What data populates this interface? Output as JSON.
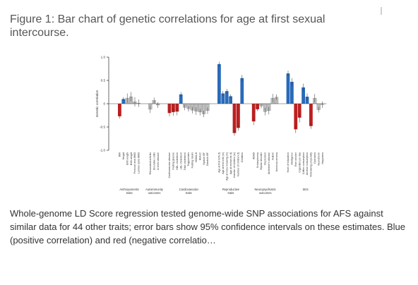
{
  "figure_title": "Figure 1: Bar chart of genetic correlations for age at first sexual intercourse.",
  "caption": "Whole-genome LD Score regression tested genome-wide SNP associations for AFS against similar data for 44 other traits; error bars show 95% confidence intervals on these estimates. Blue (positive correlation) and red (negative correlatio…",
  "colors": {
    "positive": "#2a6ab8",
    "negative": "#bb2020",
    "nonsignificant": "#bdbdbd"
  },
  "chart_data": {
    "type": "bar",
    "ylabel": "Genetic correlation",
    "ylim": [
      -1.0,
      1.0
    ],
    "yticks": [
      -1.0,
      -0.5,
      0,
      0.5,
      1.0
    ],
    "ytick_labels": [
      "-1.0",
      "-0.5",
      "0",
      "0.5",
      "1.0"
    ],
    "groups": [
      {
        "name": "Anthropometric traits",
        "traits": [
          {
            "label": "BMI",
            "value": -0.27,
            "ci": 0.05,
            "sig": "neg"
          },
          {
            "label": "Height",
            "value": 0.1,
            "ci": 0.04,
            "sig": "pos"
          },
          {
            "label": "Birth length",
            "value": 0.12,
            "ci": 0.1,
            "sig": "none"
          },
          {
            "label": "Birth weight",
            "value": 0.15,
            "ci": 0.1,
            "sig": "none"
          },
          {
            "label": "Femoral neck BMD",
            "value": 0.04,
            "ci": 0.1,
            "sig": "none"
          },
          {
            "label": "Lumbar spine BMD",
            "value": 0.01,
            "ci": 0.08,
            "sig": "none"
          }
        ]
      },
      {
        "name": "Autoimmunity outcomes",
        "traits": [
          {
            "label": "Rheumatoid arthritis",
            "value": -0.12,
            "ci": 0.08,
            "sig": "none"
          },
          {
            "label": "Ulcerative colitis",
            "value": 0.07,
            "ci": 0.06,
            "sig": "none"
          },
          {
            "label": "Crohn's disease",
            "value": -0.03,
            "ci": 0.06,
            "sig": "none"
          }
        ]
      },
      {
        "name": "Cardiovascular traits",
        "traits": [
          {
            "label": "Cardiovascular disease",
            "value": -0.2,
            "ci": 0.07,
            "sig": "neg"
          },
          {
            "label": "Fasting glucose",
            "value": -0.18,
            "ci": 0.08,
            "sig": "neg"
          },
          {
            "label": "HDL cholesterol",
            "value": -0.17,
            "ci": 0.08,
            "sig": "neg"
          },
          {
            "label": "LDL cholesterol",
            "value": 0.2,
            "ci": 0.05,
            "sig": "pos"
          },
          {
            "label": "Total cholesterol",
            "value": -0.08,
            "ci": 0.06,
            "sig": "none"
          },
          {
            "label": "Triglycerides",
            "value": -0.11,
            "ci": 0.06,
            "sig": "none"
          },
          {
            "label": "Fasting insulin",
            "value": -0.14,
            "ci": 0.07,
            "sig": "none"
          },
          {
            "label": "HOMA-B",
            "value": -0.16,
            "ci": 0.08,
            "sig": "none"
          },
          {
            "label": "HbA1C",
            "value": -0.18,
            "ci": 0.07,
            "sig": "none"
          },
          {
            "label": "Systolic BP",
            "value": -0.22,
            "ci": 0.07,
            "sig": "none"
          },
          {
            "label": "Diastolic BP",
            "value": -0.15,
            "ci": 0.07,
            "sig": "none"
          }
        ]
      },
      {
        "name": "Reproductive traits",
        "traits": [
          {
            "label": "Age at first birth (f)",
            "value": 0.85,
            "ci": 0.05,
            "sig": "pos"
          },
          {
            "label": "Age at first birth (m)",
            "value": 0.22,
            "ci": 0.05,
            "sig": "pos"
          },
          {
            "label": "Age at voice breaking (m)",
            "value": 0.27,
            "ci": 0.05,
            "sig": "pos"
          },
          {
            "label": "Age at menarche (f)",
            "value": 0.16,
            "ci": 0.04,
            "sig": "pos"
          },
          {
            "label": "Number of children (m)",
            "value": -0.63,
            "ci": 0.06,
            "sig": "neg"
          },
          {
            "label": "Number of children (f)",
            "value": -0.52,
            "ci": 0.06,
            "sig": "neg"
          },
          {
            "label": "Childless",
            "value": 0.55,
            "ci": 0.07,
            "sig": "pos"
          }
        ]
      },
      {
        "name": "Neuropsychiatric outcomes",
        "traits": [
          {
            "label": "ADHD",
            "value": -0.38,
            "ci": 0.08,
            "sig": "neg"
          },
          {
            "label": "Schizophrenia",
            "value": -0.12,
            "ci": 0.04,
            "sig": "neg"
          },
          {
            "label": "Bipolar disorder",
            "value": -0.05,
            "ci": 0.05,
            "sig": "none"
          },
          {
            "label": "Depression",
            "value": -0.17,
            "ci": 0.08,
            "sig": "none"
          },
          {
            "label": "Alzheimer's disease",
            "value": -0.15,
            "ci": 0.08,
            "sig": "none"
          },
          {
            "label": "Autism",
            "value": 0.12,
            "ci": 0.09,
            "sig": "none"
          },
          {
            "label": "Anorexia nervosa",
            "value": 0.14,
            "ci": 0.06,
            "sig": "none"
          }
        ]
      },
      {
        "name": "SES",
        "traits": [
          {
            "label": "Years of education",
            "value": 0.65,
            "ci": 0.06,
            "sig": "pos"
          },
          {
            "label": "Intelligence",
            "value": 0.47,
            "ci": 0.08,
            "sig": "pos"
          },
          {
            "label": "Ever-smoker",
            "value": -0.55,
            "ci": 0.08,
            "sig": "neg"
          },
          {
            "label": "Cigarettes per day",
            "value": -0.3,
            "ci": 0.1,
            "sig": "neg"
          },
          {
            "label": "Coffee consumption",
            "value": 0.35,
            "ci": 0.08,
            "sig": "pos"
          },
          {
            "label": "Alcohol consumption",
            "value": 0.15,
            "ci": 0.07,
            "sig": "pos"
          },
          {
            "label": "Risk-taking propensity",
            "value": -0.48,
            "ci": 0.06,
            "sig": "neg"
          },
          {
            "label": "Openness",
            "value": 0.12,
            "ci": 0.09,
            "sig": "none"
          },
          {
            "label": "Neuroticism",
            "value": -0.13,
            "ci": 0.06,
            "sig": "none"
          },
          {
            "label": "Happiness",
            "value": -0.02,
            "ci": 0.07,
            "sig": "none"
          }
        ]
      }
    ]
  }
}
